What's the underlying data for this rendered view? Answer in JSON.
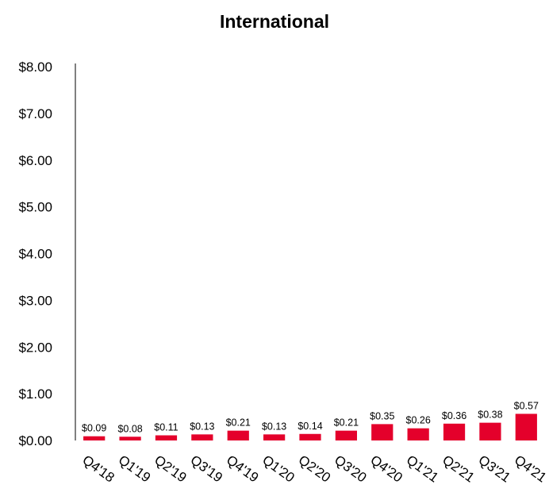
{
  "chart_data": {
    "type": "bar",
    "title": "International",
    "xlabel": "",
    "ylabel": "",
    "ylim": [
      0,
      8
    ],
    "yticks": [
      "$0.00",
      "$1.00",
      "$2.00",
      "$3.00",
      "$4.00",
      "$5.00",
      "$6.00",
      "$7.00",
      "$8.00"
    ],
    "grid": false,
    "legend": "none",
    "categories": [
      "Q4'18",
      "Q1'19",
      "Q2'19",
      "Q3'19",
      "Q4'19",
      "Q1'20",
      "Q2'20",
      "Q3'20",
      "Q4'20",
      "Q1'21",
      "Q2'21",
      "Q3'21",
      "Q4'21"
    ],
    "values": [
      0.09,
      0.08,
      0.11,
      0.13,
      0.21,
      0.13,
      0.14,
      0.21,
      0.35,
      0.26,
      0.36,
      0.38,
      0.57
    ],
    "data_labels": [
      "$0.09",
      "$0.08",
      "$0.11",
      "$0.13",
      "$0.21",
      "$0.13",
      "$0.14",
      "$0.21",
      "$0.35",
      "$0.26",
      "$0.36",
      "$0.38",
      "$0.57"
    ],
    "bar_color": "#e4002b",
    "axis_color": "#808080"
  }
}
